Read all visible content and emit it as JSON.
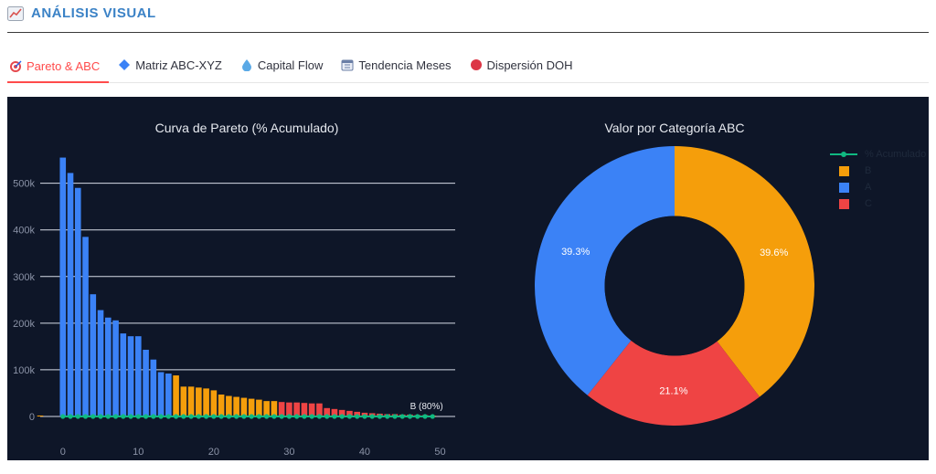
{
  "header": {
    "title": "ANÁLISIS VISUAL",
    "icon": "chart-line-icon"
  },
  "tabs": [
    {
      "label": "Pareto & ABC",
      "icon": "target-icon",
      "active": true
    },
    {
      "label": "Matriz ABC-XYZ",
      "icon": "diamond-icon",
      "active": false
    },
    {
      "label": "Capital Flow",
      "icon": "droplet-icon",
      "active": false
    },
    {
      "label": "Tendencia Meses",
      "icon": "calendar-icon",
      "active": false
    },
    {
      "label": "Dispersión DOH",
      "icon": "red-circle-icon",
      "active": false
    }
  ],
  "colors": {
    "A": "#3b82f6",
    "B": "#f59e0b",
    "C": "#ef4444",
    "line": "#10b981",
    "panel": "#0e1628"
  },
  "chart_data": [
    {
      "type": "bar",
      "title": "Curva de Pareto (% Acumulado)",
      "x_ticks": [
        0,
        10,
        20,
        30,
        40,
        50
      ],
      "y_ticks": [
        "0",
        "100k",
        "200k",
        "300k",
        "400k",
        "500k"
      ],
      "ylim": [
        0,
        560000
      ],
      "xlim": [
        -3,
        52
      ],
      "annotation": "B (80%)",
      "series": [
        {
          "name": "A",
          "color": "#3b82f6",
          "x": [
            0,
            1,
            2,
            3,
            4,
            5,
            6,
            7,
            8,
            9,
            10,
            11,
            12,
            13,
            14
          ],
          "values": [
            555000,
            522000,
            490000,
            385000,
            262000,
            228000,
            212000,
            206000,
            178000,
            172000,
            172000,
            143000,
            122000,
            95000,
            92000
          ]
        },
        {
          "name": "B",
          "color": "#f59e0b",
          "x": [
            -3,
            15,
            16,
            17,
            18,
            19,
            20,
            21,
            22,
            23,
            24,
            25,
            26,
            27,
            28,
            49
          ],
          "values": [
            2000,
            88000,
            64000,
            64000,
            62000,
            60000,
            56000,
            47000,
            44000,
            42000,
            40000,
            38000,
            36000,
            33000,
            33000,
            2000
          ]
        },
        {
          "name": "C",
          "color": "#ef4444",
          "x": [
            29,
            30,
            31,
            32,
            33,
            34,
            35,
            36,
            37,
            38,
            39,
            40,
            41,
            42,
            43,
            44,
            45,
            46,
            47,
            48
          ],
          "values": [
            31000,
            30000,
            30000,
            29000,
            28000,
            28000,
            18000,
            16000,
            14000,
            12000,
            10000,
            8000,
            7000,
            6000,
            5000,
            5000,
            4000,
            4000,
            3000,
            3000
          ]
        },
        {
          "name": "% Acumulado",
          "color": "#10b981",
          "x": [
            0,
            1,
            2,
            3,
            4,
            5,
            6,
            7,
            8,
            9,
            10,
            11,
            12,
            13,
            14,
            15,
            16,
            17,
            18,
            19,
            20,
            21,
            22,
            23,
            24,
            25,
            26,
            27,
            28,
            29,
            30,
            31,
            32,
            33,
            34,
            35,
            36,
            37,
            38,
            39,
            40,
            41,
            42,
            43,
            44,
            45,
            46,
            47,
            48,
            49
          ],
          "values": [
            0,
            0,
            0,
            0,
            0,
            0,
            0,
            0,
            0,
            0,
            0,
            0,
            0,
            0,
            0,
            0,
            0,
            0,
            0,
            0,
            0,
            0,
            0,
            0,
            0,
            0,
            0,
            0,
            0,
            0,
            0,
            0,
            0,
            0,
            0,
            0,
            0,
            0,
            0,
            0,
            0,
            0,
            0,
            0,
            0,
            0,
            0,
            0,
            0,
            0
          ]
        }
      ]
    },
    {
      "type": "pie",
      "title": "Valor por Categoría ABC",
      "hole": 0.5,
      "slices": [
        {
          "label": "B",
          "value": 39.6,
          "text": "39.6%",
          "color": "#f59e0b"
        },
        {
          "label": "C",
          "value": 21.1,
          "text": "21.1%",
          "color": "#ef4444"
        },
        {
          "label": "A",
          "value": 39.3,
          "text": "39.3%",
          "color": "#3b82f6"
        }
      ]
    }
  ],
  "legend": [
    {
      "label": "% Acumulado",
      "type": "line",
      "color": "#10b981"
    },
    {
      "label": "B",
      "type": "box",
      "color": "#f59e0b"
    },
    {
      "label": "A",
      "type": "box",
      "color": "#3b82f6"
    },
    {
      "label": "C",
      "type": "box",
      "color": "#ef4444"
    }
  ]
}
